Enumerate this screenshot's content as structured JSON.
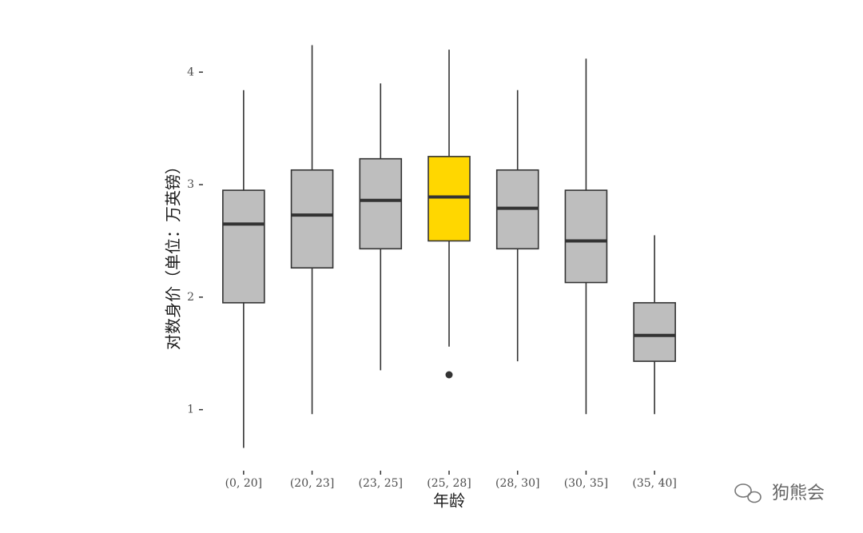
{
  "chart_data": {
    "type": "box",
    "xlabel": "年龄",
    "ylabel": "对数身价（单位：万英镑）",
    "categories": [
      "(0, 20]",
      "(20, 23]",
      "(23, 25]",
      "(25, 28]",
      "(28, 30]",
      "(30, 35]",
      "(35, 40]"
    ],
    "boxes": [
      {
        "low": 0.66,
        "q1": 1.95,
        "median": 2.65,
        "q3": 2.95,
        "high": 3.84,
        "outliers": [],
        "color": "#bebebe"
      },
      {
        "low": 0.96,
        "q1": 2.26,
        "median": 2.73,
        "q3": 3.13,
        "high": 4.24,
        "outliers": [],
        "color": "#bebebe"
      },
      {
        "low": 1.35,
        "q1": 2.43,
        "median": 2.86,
        "q3": 3.23,
        "high": 3.9,
        "outliers": [],
        "color": "#bebebe"
      },
      {
        "low": 1.56,
        "q1": 2.5,
        "median": 2.89,
        "q3": 3.25,
        "high": 4.2,
        "outliers": [
          1.31
        ],
        "color": "#ffd700"
      },
      {
        "low": 1.43,
        "q1": 2.43,
        "median": 2.79,
        "q3": 3.13,
        "high": 3.84,
        "outliers": [],
        "color": "#bebebe"
      },
      {
        "low": 0.96,
        "q1": 2.13,
        "median": 2.5,
        "q3": 2.95,
        "high": 4.12,
        "outliers": [],
        "color": "#bebebe"
      },
      {
        "low": 0.96,
        "q1": 1.43,
        "median": 1.66,
        "q3": 1.95,
        "high": 2.55,
        "outliers": [],
        "color": "#bebebe"
      }
    ],
    "ylim": [
      0.55,
      4.35
    ],
    "yticks": [
      1,
      2,
      3,
      4
    ]
  },
  "watermark": "狗熊会"
}
